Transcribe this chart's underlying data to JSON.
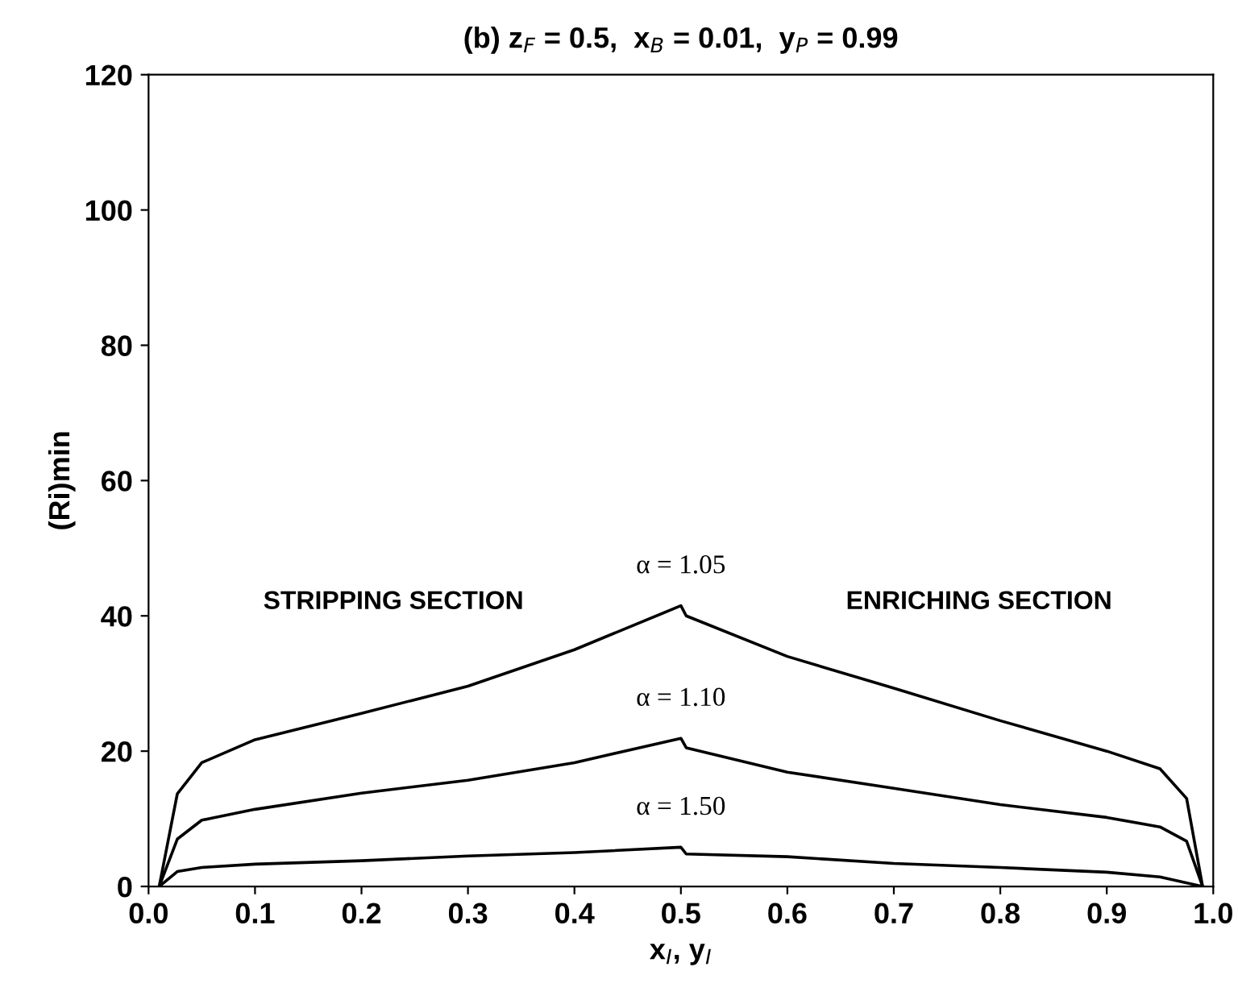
{
  "chart_data": {
    "type": "line",
    "title": "(b) z$_{F}$ = 0.5,  x$_{B}$ = 0.01,  y$_{P}$ = 0.99",
    "xlabel": "x$_{I}$, y$_{I}$",
    "ylabel": "(Ri)min",
    "series": [
      {
        "name": "α = 1.05",
        "color": "#000000",
        "x": [
          0.01,
          0.027,
          0.05,
          0.1,
          0.2,
          0.3,
          0.4,
          0.5,
          0.505,
          0.6,
          0.7,
          0.8,
          0.9,
          0.95,
          0.975,
          0.99
        ],
        "values": [
          0,
          13.7,
          18.3,
          21.7,
          25.6,
          29.6,
          35,
          41.5,
          40,
          34,
          29.3,
          24.5,
          20,
          17.4,
          13,
          0
        ]
      },
      {
        "name": "α = 1.10",
        "color": "#000000",
        "x": [
          0.01,
          0.027,
          0.05,
          0.1,
          0.2,
          0.3,
          0.4,
          0.5,
          0.505,
          0.6,
          0.7,
          0.8,
          0.9,
          0.95,
          0.975,
          0.99
        ],
        "values": [
          0,
          7,
          9.8,
          11.4,
          13.8,
          15.7,
          18.3,
          21.9,
          20.5,
          16.9,
          14.5,
          12.1,
          10.2,
          8.8,
          6.7,
          0
        ]
      },
      {
        "name": "α = 1.50",
        "color": "#000000",
        "x": [
          0.01,
          0.027,
          0.05,
          0.1,
          0.2,
          0.3,
          0.4,
          0.5,
          0.505,
          0.6,
          0.7,
          0.8,
          0.9,
          0.95,
          0.99
        ],
        "values": [
          0,
          2.2,
          2.8,
          3.3,
          3.8,
          4.5,
          5,
          5.8,
          4.8,
          4.4,
          3.4,
          2.8,
          2.1,
          1.4,
          0
        ]
      }
    ],
    "annotations": [
      "STRIPPING SECTION",
      "ENRICHING SECTION"
    ],
    "xlim": [
      0,
      1
    ],
    "ylim": [
      0,
      120
    ],
    "xticks": [
      {
        "value": 0,
        "label": "0.0"
      },
      0.1,
      0.2,
      0.3,
      0.4,
      0.5,
      0.6,
      0.7,
      0.8,
      0.9,
      {
        "value": 1,
        "label": "1.0"
      }
    ],
    "yticks": [
      0,
      20,
      40,
      60,
      80,
      100,
      120
    ],
    "grid": false,
    "legend": false,
    "marker": "none",
    "line_style": "solid"
  }
}
